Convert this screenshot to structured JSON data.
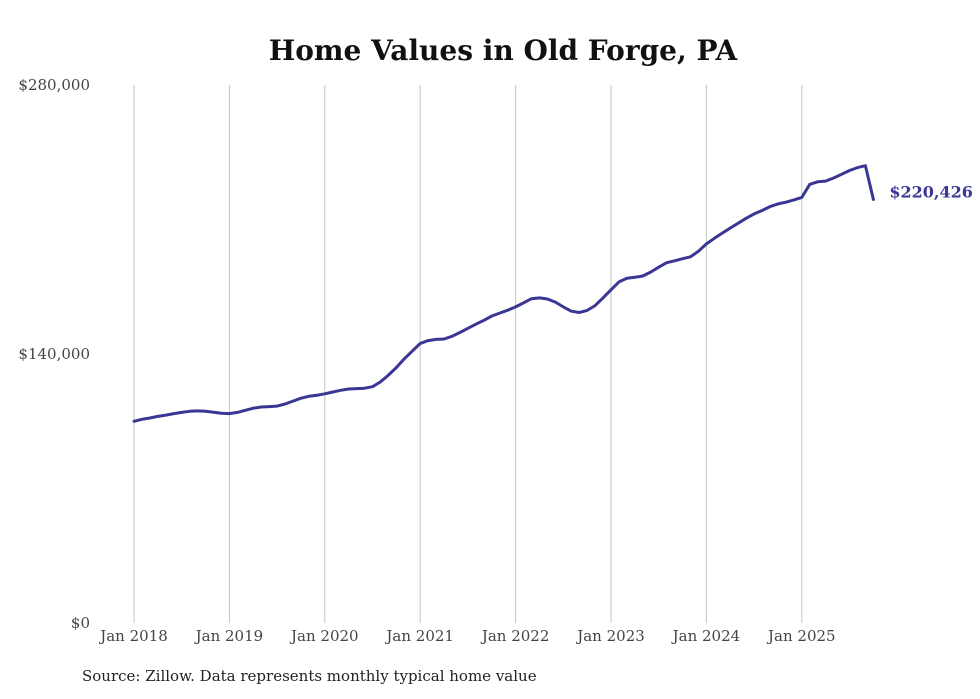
{
  "chart_data": {
    "type": "line",
    "title": "Home Values in Old Forge, PA",
    "source": "Source: Zillow. Data represents monthly typical home value",
    "ylim": [
      0,
      280000
    ],
    "y_ticks": [
      {
        "value": 0,
        "label": "$0"
      },
      {
        "value": 140000,
        "label": "$140,000"
      },
      {
        "value": 280000,
        "label": "$280,000"
      }
    ],
    "x_ticks": [
      {
        "value": "2018-01",
        "label": "Jan 2018"
      },
      {
        "value": "2019-01",
        "label": "Jan 2019"
      },
      {
        "value": "2020-01",
        "label": "Jan 2020"
      },
      {
        "value": "2021-01",
        "label": "Jan 2021"
      },
      {
        "value": "2022-01",
        "label": "Jan 2022"
      },
      {
        "value": "2023-01",
        "label": "Jan 2023"
      },
      {
        "value": "2024-01",
        "label": "Jan 2024"
      },
      {
        "value": "2025-01",
        "label": "Jan 2025"
      }
    ],
    "grid": {
      "vertical": true,
      "horizontal": false
    },
    "line_color": "#3a3794",
    "end_label": "$220,426",
    "series": [
      {
        "x": [
          "2018-01",
          "2018-02",
          "2018-03",
          "2018-04",
          "2018-05",
          "2018-06",
          "2018-07",
          "2018-08",
          "2018-09",
          "2018-10",
          "2018-11",
          "2018-12",
          "2019-01",
          "2019-02",
          "2019-03",
          "2019-04",
          "2019-05",
          "2019-06",
          "2019-07",
          "2019-08",
          "2019-09",
          "2019-10",
          "2019-11",
          "2019-12",
          "2020-01",
          "2020-02",
          "2020-03",
          "2020-04",
          "2020-05",
          "2020-06",
          "2020-07",
          "2020-08",
          "2020-09",
          "2020-10",
          "2020-11",
          "2020-12",
          "2021-01",
          "2021-02",
          "2021-03",
          "2021-04",
          "2021-05",
          "2021-06",
          "2021-07",
          "2021-08",
          "2021-09",
          "2021-10",
          "2021-11",
          "2021-12",
          "2022-01",
          "2022-02",
          "2022-03",
          "2022-04",
          "2022-05",
          "2022-06",
          "2022-07",
          "2022-08",
          "2022-09",
          "2022-10",
          "2022-11",
          "2022-12",
          "2023-01",
          "2023-02",
          "2023-03",
          "2023-04",
          "2023-05",
          "2023-06",
          "2023-07",
          "2023-08",
          "2023-09",
          "2023-10",
          "2023-11",
          "2023-12",
          "2024-01",
          "2024-02",
          "2024-03",
          "2024-04",
          "2024-05",
          "2024-06",
          "2024-07",
          "2024-08",
          "2024-09",
          "2024-10",
          "2024-11",
          "2024-12",
          "2025-01",
          "2025-02",
          "2025-03",
          "2025-04",
          "2025-05",
          "2025-06",
          "2025-07",
          "2025-08",
          "2025-09",
          "2025-10"
        ],
        "values": [
          105000,
          106000,
          106700,
          107500,
          108200,
          109000,
          109600,
          110200,
          110400,
          110200,
          109700,
          109200,
          109000,
          109600,
          110700,
          111800,
          112400,
          112600,
          112900,
          114000,
          115500,
          117000,
          118000,
          118500,
          119300,
          120200,
          121100,
          121800,
          122000,
          122200,
          123000,
          125500,
          129000,
          133000,
          137500,
          141500,
          145500,
          147000,
          147600,
          147800,
          149200,
          151200,
          153400,
          155500,
          157500,
          159800,
          161300,
          162800,
          164500,
          166600,
          168800,
          169200,
          168600,
          167000,
          164500,
          162300,
          161600,
          162700,
          165200,
          169200,
          173400,
          177500,
          179400,
          179900,
          180600,
          182700,
          185200,
          187500,
          188500,
          189600,
          190600,
          193500,
          197300,
          200200,
          202900,
          205600,
          208100,
          210600,
          212900,
          214700,
          216700,
          218100,
          219000,
          220200,
          221500,
          228300,
          229600,
          230000,
          231600,
          233500,
          235500,
          237000,
          238000,
          220426
        ]
      }
    ]
  }
}
